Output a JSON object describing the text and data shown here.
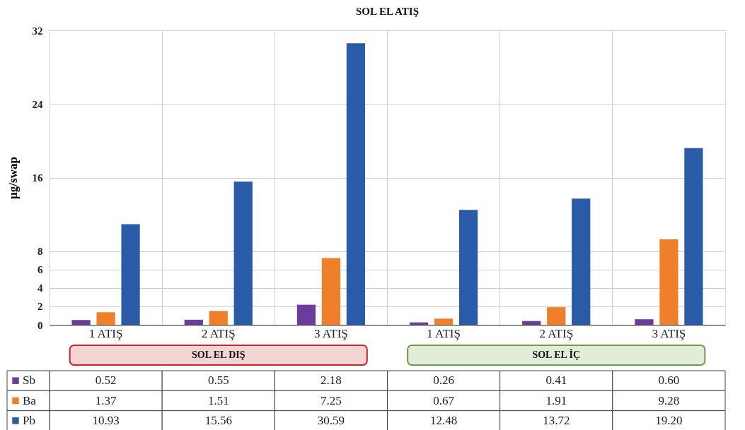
{
  "chart_data": {
    "type": "bar",
    "title": "SOL EL ATIŞ",
    "ylabel": "µg/swap",
    "categories": [
      "1 ATIŞ",
      "2 ATIŞ",
      "3 ATIŞ",
      "1 ATIŞ",
      "2 ATIŞ",
      "3 ATIŞ"
    ],
    "series": [
      {
        "name": "Sb",
        "color": "#6a3d9a",
        "values": [
          0.52,
          0.55,
          2.18,
          0.26,
          0.41,
          0.6
        ],
        "value_labels": [
          "0.52",
          "0.55",
          "2.18",
          "0.26",
          "0.41",
          "0.60"
        ]
      },
      {
        "name": "Ba",
        "color": "#f07f2a",
        "values": [
          1.37,
          1.51,
          7.25,
          0.67,
          1.91,
          9.28
        ],
        "value_labels": [
          "1.37",
          "1.51",
          "7.25",
          "0.67",
          "1.91",
          "9.28"
        ]
      },
      {
        "name": "Pb",
        "color": "#2a5ba8",
        "values": [
          10.93,
          15.56,
          30.59,
          12.48,
          13.72,
          19.2
        ],
        "value_labels": [
          "10.93",
          "15.56",
          "30.59",
          "12.48",
          "13.72",
          "19.20"
        ]
      }
    ],
    "ylim": [
      0,
      32
    ],
    "yticks": [
      0,
      2,
      4,
      6,
      8,
      16,
      24,
      32
    ],
    "grid": true,
    "legend": "bottom left",
    "annotations": [
      "SOL  EL DIŞ",
      "SOL EL İÇ"
    ]
  }
}
